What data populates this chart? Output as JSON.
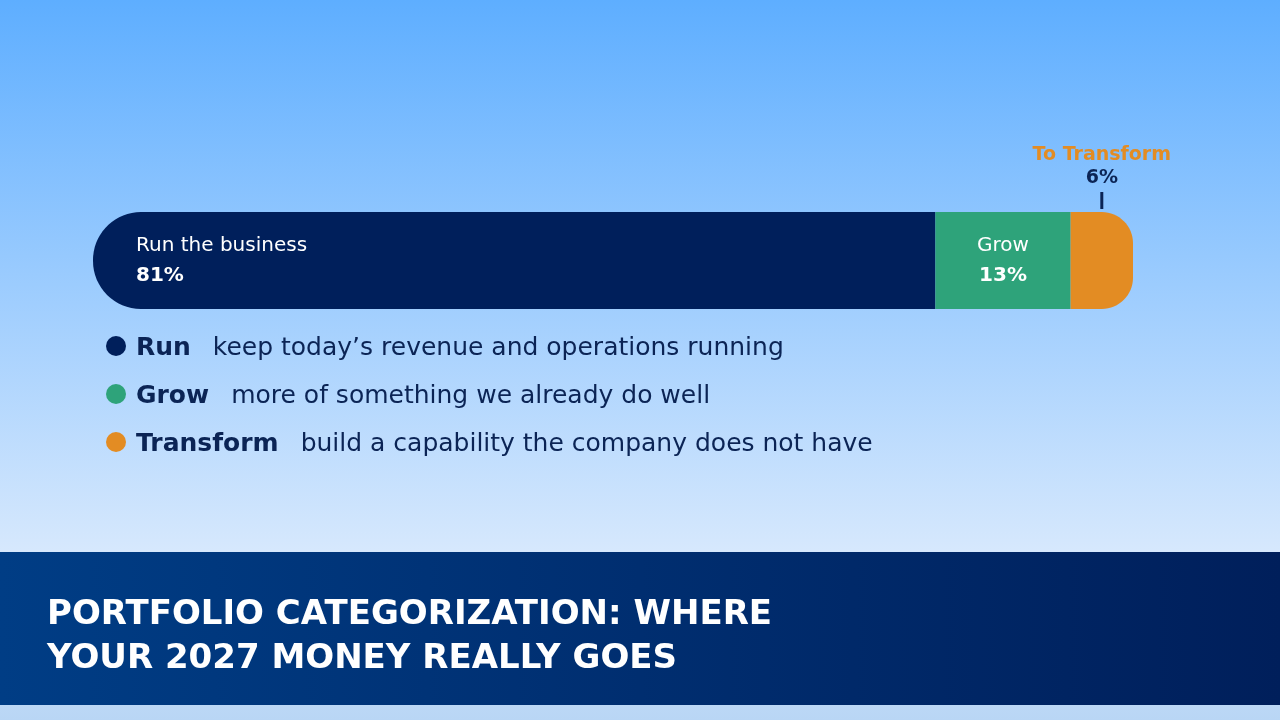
{
  "chart_data": {
    "type": "bar",
    "orientation": "horizontal",
    "stacked": true,
    "title": "PORTFOLIO CATEGORIZATION: WHERE YOUR 2027 MONEY REALLY GOES",
    "categories": [
      null
    ],
    "series": [
      {
        "name": "Run the business",
        "color": "#001f5b",
        "values": [
          81
        ],
        "value_labels": [
          "81%"
        ]
      },
      {
        "name": "Grow",
        "color": "#2ea37a",
        "values": [
          13
        ],
        "value_labels": [
          "13%"
        ]
      },
      {
        "name": "To Transform",
        "color": "#e38c23",
        "values": [
          6
        ],
        "value_labels": [
          "6%"
        ]
      }
    ],
    "annotations": [
      "Run keep today’s revenue and operations running",
      "Grow more of something we already do well",
      "Transform build a capability the company does not have"
    ]
  }
}
